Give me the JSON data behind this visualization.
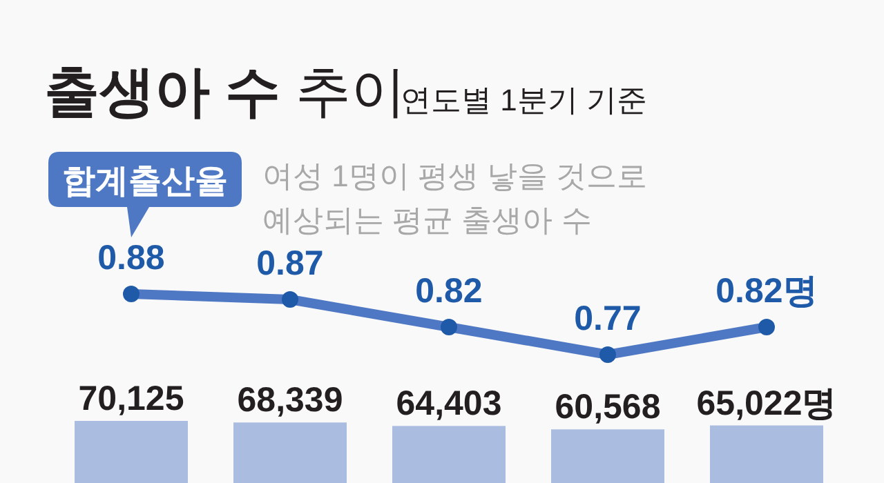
{
  "chart_data": [
    {
      "type": "line",
      "title": "**출생아 수** 추이",
      "subtitle": "연도별 1분기 기준",
      "annotations": [
        "여성 1명이 평생 낳을 것으로",
        "예상되는 평균 출생아 수"
      ],
      "categories": [
        null,
        null,
        null,
        null,
        null
      ],
      "marker": "circle",
      "series": [
        {
          "name": "합계출산율",
          "color": "#4f78c4",
          "values": [
            0.88,
            0.87,
            0.82,
            0.77,
            0.82
          ],
          "value_labels": [
            "0.88",
            "0.87",
            "0.82",
            "0.77",
            "0.82명"
          ]
        }
      ]
    },
    {
      "type": "bar",
      "categories": [
        null,
        null,
        null,
        null,
        null
      ],
      "series": [
        {
          "color": "#aabde0",
          "values": [
            70125,
            68339,
            64403,
            60568,
            65022
          ],
          "value_labels": [
            "70,125",
            "68,339",
            "64,403",
            "60,568",
            "65,022명"
          ]
        }
      ]
    }
  ]
}
